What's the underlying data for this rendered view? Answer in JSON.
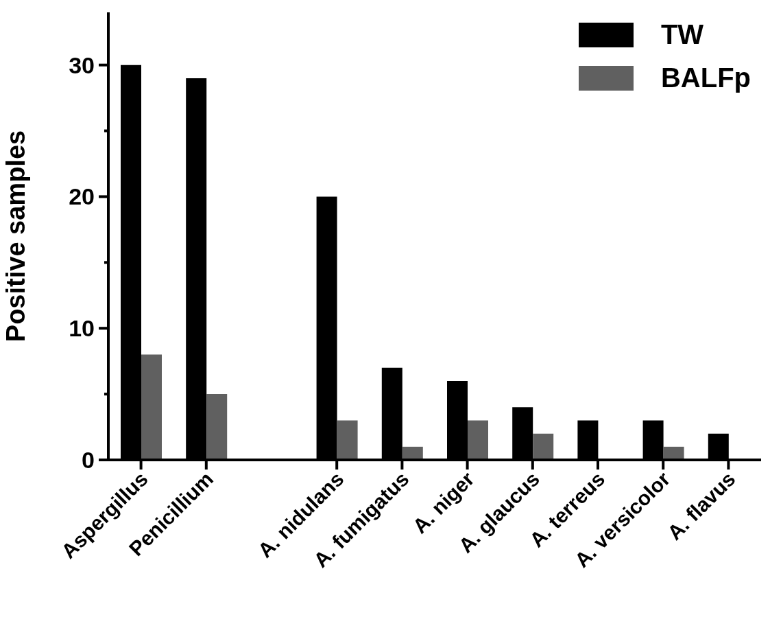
{
  "chart_data": {
    "type": "bar",
    "ylabel": "Positive samples",
    "categories": [
      "Aspergillus",
      "Penicillium",
      null,
      "A. nidulans",
      "A. fumigatus",
      "A. niger",
      "A. glaucus",
      "A. terreus",
      "A. versicolor",
      "A. flavus"
    ],
    "series": [
      {
        "name": "TW",
        "color": "#000000",
        "values": [
          30,
          29,
          null,
          20,
          7,
          6,
          4,
          3,
          3,
          2
        ]
      },
      {
        "name": "BALFp",
        "color": "#606060",
        "values": [
          8,
          5,
          null,
          3,
          1,
          3,
          2,
          0,
          1,
          0
        ]
      }
    ],
    "ylim": [
      0,
      34
    ],
    "yticks": [
      0,
      {
        "value": 5,
        "label": null
      },
      10,
      {
        "value": 15,
        "label": null
      },
      20,
      {
        "value": 25,
        "label": null
      },
      30
    ],
    "grid": false,
    "legend": "top right"
  }
}
